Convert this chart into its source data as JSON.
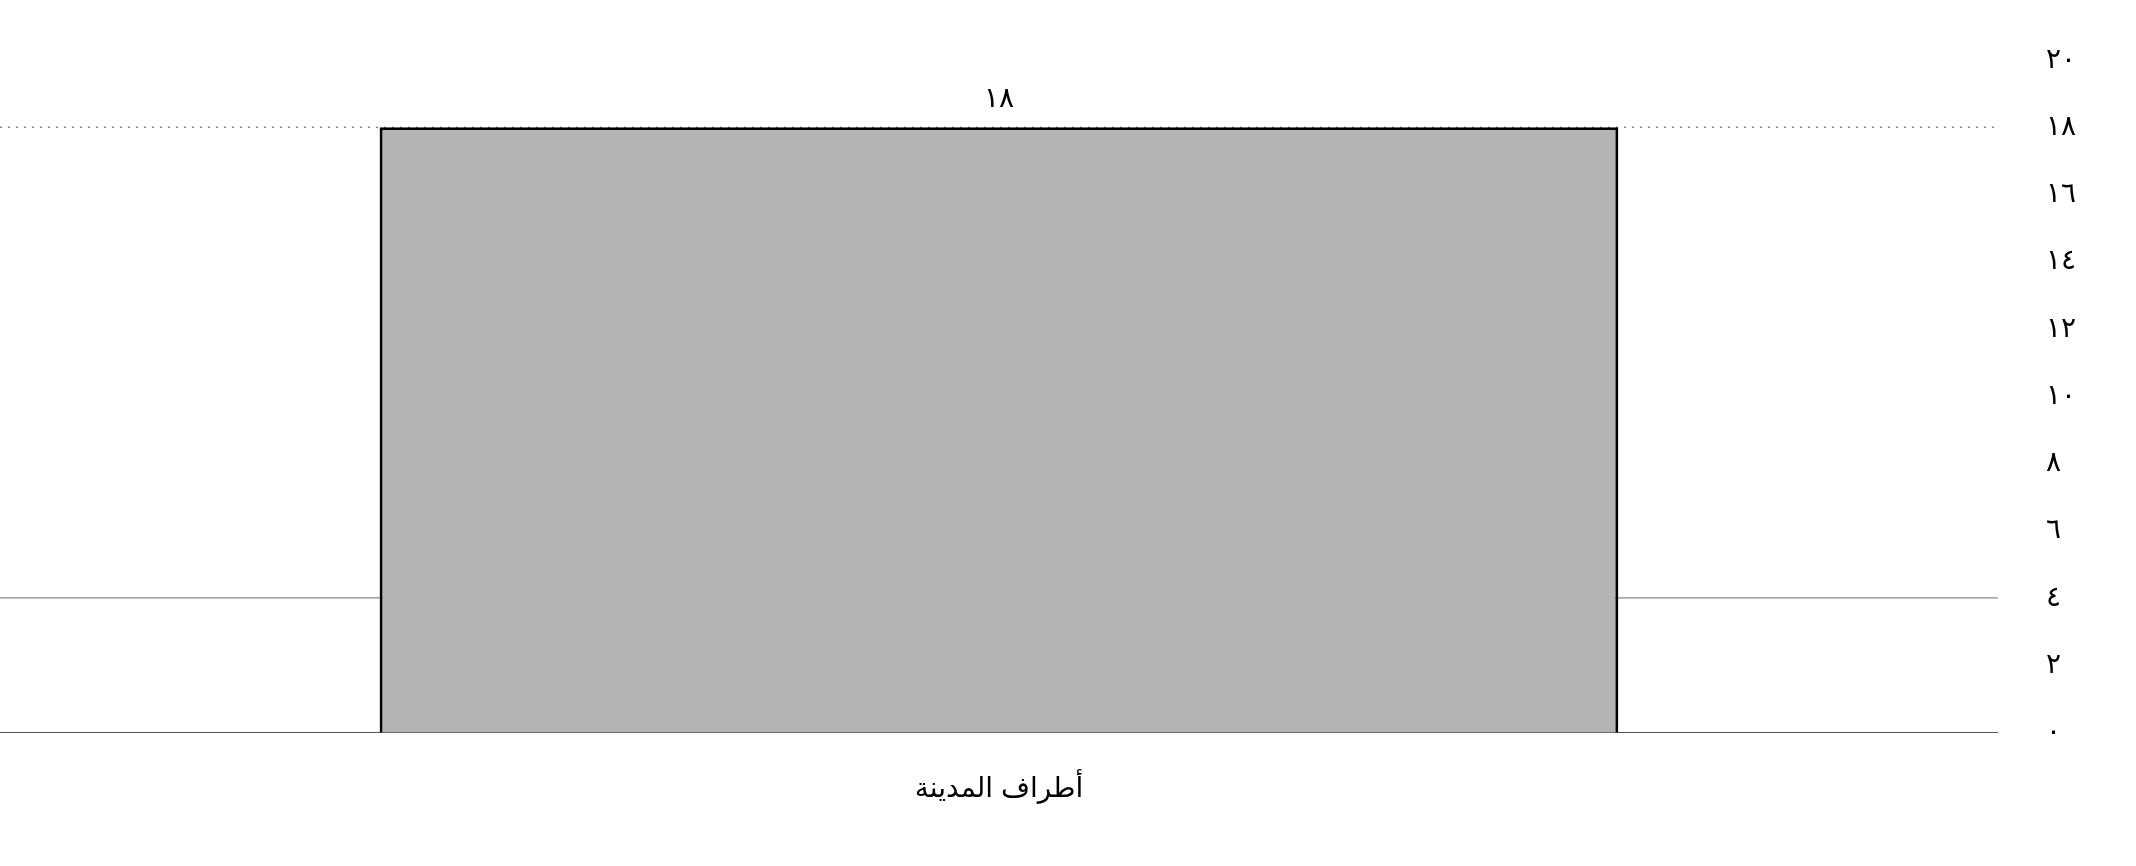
{
  "chart_data": {
    "type": "bar",
    "categories": [
      "أطراف المدينة"
    ],
    "values": [
      18
    ],
    "color": "#b4b4b4",
    "value_labels": [
      "١٨"
    ],
    "ylim": [
      0,
      20
    ],
    "yticks": [
      {
        "value": 0,
        "label": "٠"
      },
      {
        "value": 2,
        "label": "٢"
      },
      {
        "value": 4,
        "label": "٤"
      },
      {
        "value": 6,
        "label": "٦"
      },
      {
        "value": 8,
        "label": "٨"
      },
      {
        "value": 10,
        "label": "١٠"
      },
      {
        "value": 12,
        "label": "١٢"
      },
      {
        "value": 14,
        "label": "١٤"
      },
      {
        "value": 16,
        "label": "١٦"
      },
      {
        "value": 18,
        "label": "١٨"
      },
      {
        "value": 20,
        "label": "٢٠"
      }
    ],
    "ref_lines": [
      {
        "axis": "y",
        "value": 18,
        "line_style": "dotted",
        "color": "#555555"
      },
      {
        "axis": "y",
        "value": 4,
        "line_style": "solid",
        "color": "#888888"
      }
    ],
    "grid": false,
    "legend": false
  }
}
